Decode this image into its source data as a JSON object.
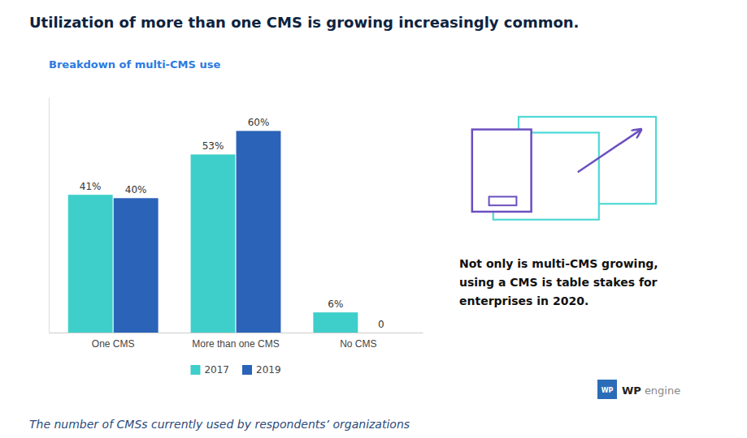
{
  "chart_data": {
    "type": "bar",
    "title": "Utilization of more than one CMS is growing increasingly common.",
    "subtitle": "Breakdown of multi-CMS use",
    "categories": [
      "One CMS",
      "More than one CMS",
      "No CMS"
    ],
    "series": [
      {
        "name": "2017",
        "color": "#3ECFCA",
        "values": [
          41,
          53,
          6
        ],
        "value_labels": [
          "41%",
          "53%",
          "6%"
        ]
      },
      {
        "name": "2019",
        "color": "#2B63B8",
        "values": [
          40,
          60,
          0
        ],
        "value_labels": [
          "40%",
          "60%",
          "0"
        ]
      }
    ],
    "ylim": [
      0,
      70
    ],
    "data_labels": true,
    "tick_labels": "x",
    "grid": false,
    "legend": "bottom",
    "annotations": [
      "Not only is multi-CMS growing,",
      "using a CMS is table stakes for",
      "enterprises in 2020.",
      "The number of CMSs currently used by respondents’ organizations",
      "WP",
      "WP",
      "engine"
    ]
  }
}
